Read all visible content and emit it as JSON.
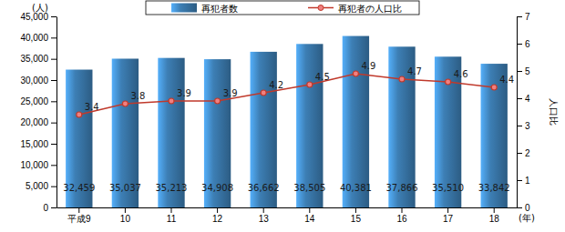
{
  "chart_data": {
    "type": "bar",
    "categories": [
      "平成9",
      "10",
      "11",
      "12",
      "13",
      "14",
      "15",
      "16",
      "17",
      "18"
    ],
    "x_label": "(年)",
    "y_label": "(人)",
    "y2_label": "人口比",
    "ylim": [
      0,
      45000
    ],
    "yticks": [
      0,
      {
        "value": 5000,
        "label": "5,000"
      },
      {
        "value": 10000,
        "label": "10,000"
      },
      {
        "value": 15000,
        "label": "15,000"
      },
      {
        "value": 20000,
        "label": "20,000"
      },
      {
        "value": 25000,
        "label": "25,000"
      },
      {
        "value": 30000,
        "label": "30,000"
      },
      {
        "value": 35000,
        "label": "35,000"
      },
      {
        "value": 40000,
        "label": "40,000"
      },
      {
        "value": 45000,
        "label": "45,000"
      }
    ],
    "y2lim": [
      0,
      7
    ],
    "y2ticks": [
      0,
      1,
      2,
      3,
      4,
      5,
      6,
      7
    ],
    "grid": false,
    "legend": "top",
    "data_labels": true,
    "series": [
      {
        "name": "再犯者数",
        "type": "bar",
        "color": "#3d7fb5",
        "values": [
          32459,
          35037,
          35213,
          34908,
          36662,
          38505,
          40381,
          37866,
          35510,
          33842
        ],
        "value_labels": [
          "32,459",
          "35,037",
          "35,213",
          "34,908",
          "36,662",
          "38,505",
          "40,381",
          "37,866",
          "35,510",
          "33,842"
        ]
      },
      {
        "name": "再犯者の人口比",
        "type": "line",
        "axis": "y2",
        "color": "#c0392b",
        "marker": "circle",
        "values": [
          3.4,
          3.8,
          3.9,
          3.9,
          4.2,
          4.5,
          4.9,
          4.7,
          4.6,
          4.4
        ]
      }
    ]
  }
}
